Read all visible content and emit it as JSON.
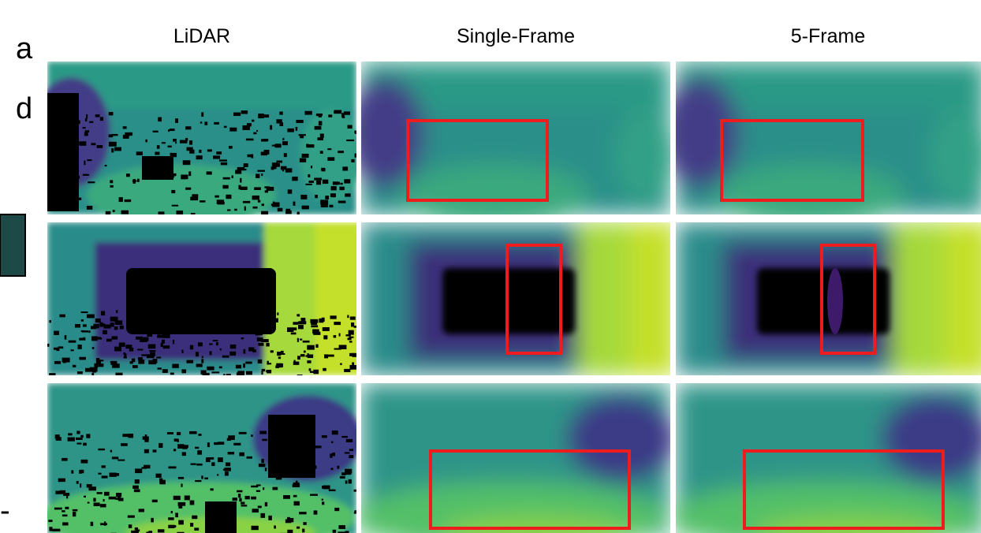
{
  "figure": {
    "columns": [
      "LiDAR",
      "Single-Frame",
      "5-Frame"
    ],
    "margin_text": [
      "a",
      "d",
      "-"
    ]
  }
}
